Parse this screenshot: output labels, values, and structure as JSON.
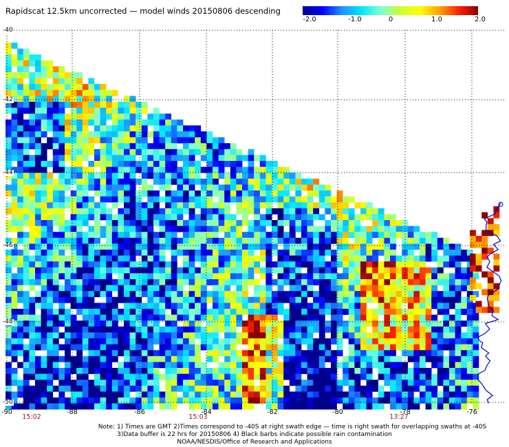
{
  "title": "Rapidscat 12.5km uncorrected — model winds 20150806 descending",
  "colorbar": {
    "ticks": [
      "-2.0",
      "-1.0",
      "0",
      "1.0",
      "2.0"
    ],
    "range": [
      -2.0,
      2.0
    ],
    "colors": [
      "#00008b",
      "#0000ff",
      "#1e90ff",
      "#00e5ff",
      "#7fffd4",
      "#c8ff32",
      "#ffff00",
      "#ffa500",
      "#ff2000",
      "#8b0000"
    ]
  },
  "map": {
    "lat_labels": [
      "-40",
      "-42",
      "-44",
      "-46",
      "-48",
      "-50"
    ],
    "lon_labels": [
      "-90",
      "-88",
      "-86",
      "-84",
      "-82",
      "-80",
      "-78",
      "-76"
    ],
    "lat_range": [
      -50,
      -40
    ],
    "lon_range": [
      -90,
      -75
    ],
    "swath": "descending",
    "coastline_color": "#0000cc"
  },
  "times": [
    "15:02",
    "15:03",
    "13:27"
  ],
  "notes": [
    "Note: 1) Times are GMT 2)Times correspond to -40S at right swath edge — time is right swath for overlapping swaths at -40S",
    "3)Data buffer is 22 hrs for 20150806 4) Black barbs indicate possible rain contamination",
    "NOAA/NESDIS/Office of Research and Applications"
  ]
}
